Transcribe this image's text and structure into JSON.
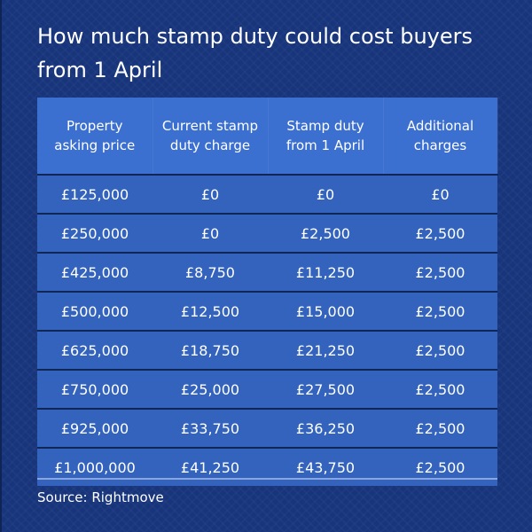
{
  "title": "How much stamp duty could cost buyers from 1 April",
  "source": "Source: Rightmove",
  "colors": {
    "background": "#18357c",
    "header": "#3b6fd0",
    "row": "#3363bd",
    "text": "#ffffff"
  },
  "chart_data": {
    "type": "table",
    "title": "How much stamp duty could cost buyers from 1 April",
    "columns": [
      "Property asking price",
      "Current stamp duty charge",
      "Stamp duty from 1 April",
      "Additional charges"
    ],
    "rows": [
      [
        "£125,000",
        "£0",
        "£0",
        "£0"
      ],
      [
        "£250,000",
        "£0",
        "£2,500",
        "£2,500"
      ],
      [
        "£425,000",
        "£8,750",
        "£11,250",
        "£2,500"
      ],
      [
        "£500,000",
        "£12,500",
        "£15,000",
        "£2,500"
      ],
      [
        "£625,000",
        "£18,750",
        "£21,250",
        "£2,500"
      ],
      [
        "£750,000",
        "£25,000",
        "£27,500",
        "£2,500"
      ],
      [
        "£925,000",
        "£33,750",
        "£36,250",
        "£2,500"
      ],
      [
        "£1,000,000",
        "£41,250",
        "£43,750",
        "£2,500"
      ]
    ],
    "source": "Source: Rightmove"
  }
}
